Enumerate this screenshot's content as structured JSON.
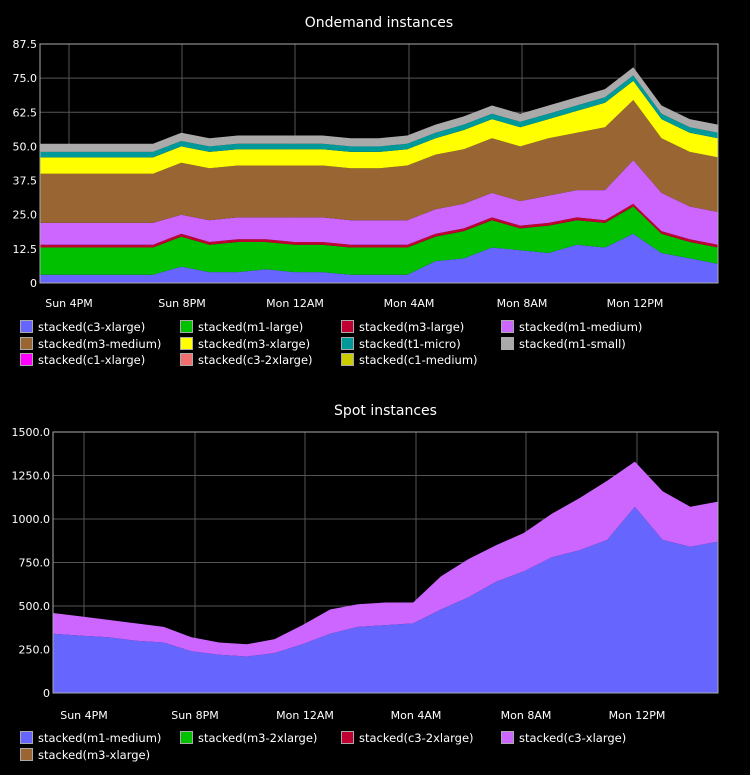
{
  "chart_data": [
    {
      "type": "area",
      "stacked": true,
      "title": "Ondemand instances",
      "ylim": [
        0,
        87.5
      ],
      "y_ticks": [
        "0",
        "12.5",
        "25.0",
        "37.5",
        "50.0",
        "62.5",
        "75.0",
        "87.5"
      ],
      "x_ticks": [
        "Sun  4PM",
        "Sun  8PM",
        "Mon 12AM",
        "Mon  4AM",
        "Mon  8AM",
        "Mon 12PM"
      ],
      "grid": true,
      "legend_position": "bottom",
      "x_hours": [
        0,
        1,
        2,
        3,
        4,
        5,
        6,
        7,
        8,
        9,
        10,
        11,
        12,
        13,
        14,
        15,
        16,
        17,
        18,
        19,
        20,
        21,
        22,
        23,
        24
      ],
      "series": [
        {
          "name": "stacked(c3-xlarge)",
          "color": "#6666ff",
          "values": [
            3,
            3,
            3,
            3,
            3,
            6,
            4,
            4,
            5,
            4,
            4,
            3,
            3,
            3,
            8,
            9,
            13,
            12,
            11,
            14,
            13,
            18,
            11,
            9,
            7
          ]
        },
        {
          "name": "stacked(m1-large)",
          "color": "#00c000",
          "values": [
            10,
            10,
            10,
            10,
            10,
            11,
            10,
            11,
            10,
            10,
            10,
            10,
            10,
            10,
            9,
            10,
            10,
            8,
            10,
            9,
            9,
            10,
            7,
            6,
            6
          ]
        },
        {
          "name": "stacked(m3-large)",
          "color": "#c00030",
          "values": [
            1,
            1,
            1,
            1,
            1,
            1,
            1,
            1,
            1,
            1,
            1,
            1,
            1,
            1,
            1,
            1,
            1,
            1,
            1,
            1,
            1,
            1,
            1,
            1,
            1
          ]
        },
        {
          "name": "stacked(m1-medium)",
          "color": "#cc66ff",
          "values": [
            8,
            8,
            8,
            8,
            8,
            7,
            8,
            8,
            8,
            9,
            9,
            9,
            9,
            9,
            9,
            9,
            9,
            9,
            10,
            10,
            11,
            16,
            14,
            12,
            12
          ]
        },
        {
          "name": "stacked(m3-medium)",
          "color": "#996633",
          "values": [
            18,
            18,
            18,
            18,
            18,
            19,
            19,
            19,
            19,
            19,
            19,
            19,
            19,
            20,
            20,
            20,
            20,
            20,
            21,
            21,
            23,
            22,
            20,
            20,
            20
          ]
        },
        {
          "name": "stacked(m3-xlarge)",
          "color": "#ffff00",
          "values": [
            6,
            6,
            6,
            6,
            6,
            6,
            6,
            6,
            6,
            6,
            6,
            6,
            6,
            6,
            6,
            7,
            7,
            7,
            7,
            8,
            9,
            7,
            7,
            7,
            7
          ]
        },
        {
          "name": "stacked(t1-micro)",
          "color": "#009999",
          "values": [
            2,
            2,
            2,
            2,
            2,
            2,
            2,
            2,
            2,
            2,
            2,
            2,
            2,
            2,
            2,
            2,
            2,
            2,
            2,
            2,
            2,
            2,
            2,
            2,
            2
          ]
        },
        {
          "name": "stacked(m1-small)",
          "color": "#aaaaaa",
          "values": [
            3,
            3,
            3,
            3,
            3,
            3,
            3,
            3,
            3,
            3,
            3,
            3,
            3,
            3,
            3,
            3,
            3,
            3,
            3,
            3,
            3,
            3,
            3,
            3,
            3
          ]
        },
        {
          "name": "stacked(c1-xlarge)",
          "color": "#ff00ff",
          "values": [
            0,
            0,
            0,
            0,
            0,
            0,
            0,
            0,
            0,
            0,
            0,
            0,
            0,
            0,
            0,
            0,
            0,
            0,
            0,
            0,
            0,
            0,
            0,
            0,
            0
          ]
        },
        {
          "name": "stacked(c3-2xlarge)",
          "color": "#f07070",
          "values": [
            0,
            0,
            0,
            0,
            0,
            0,
            0,
            0,
            0,
            0,
            0,
            0,
            0,
            0,
            0,
            0,
            0,
            0,
            0,
            0,
            0,
            0,
            0,
            0,
            0
          ]
        },
        {
          "name": "stacked(c1-medium)",
          "color": "#cccc00",
          "values": [
            0,
            0,
            0,
            0,
            0,
            0,
            0,
            0,
            0,
            0,
            0,
            0,
            0,
            0,
            0,
            0,
            0,
            0,
            0,
            0,
            0,
            0,
            0,
            0,
            0
          ]
        }
      ]
    },
    {
      "type": "area",
      "stacked": true,
      "title": "Spot instances",
      "ylim": [
        0,
        1500
      ],
      "y_ticks": [
        "0",
        "250.0",
        "500.0",
        "750.0",
        "1000.0",
        "1250.0",
        "1500.0"
      ],
      "x_ticks": [
        "Sun  4PM",
        "Sun  8PM",
        "Mon 12AM",
        "Mon  4AM",
        "Mon  8AM",
        "Mon 12PM"
      ],
      "grid": true,
      "legend_position": "bottom",
      "x_hours": [
        0,
        1,
        2,
        3,
        4,
        5,
        6,
        7,
        8,
        9,
        10,
        11,
        12,
        13,
        14,
        15,
        16,
        17,
        18,
        19,
        20,
        21,
        22,
        23,
        24
      ],
      "series": [
        {
          "name": "stacked(m1-medium)",
          "color": "#6666ff",
          "values": [
            340,
            330,
            320,
            300,
            290,
            240,
            220,
            210,
            230,
            280,
            340,
            380,
            390,
            400,
            480,
            550,
            640,
            700,
            780,
            820,
            880,
            1070,
            880,
            840,
            870
          ]
        },
        {
          "name": "stacked(m3-2xlarge)",
          "color": "#00c000",
          "values": [
            0,
            0,
            0,
            0,
            0,
            0,
            0,
            0,
            0,
            0,
            0,
            0,
            0,
            0,
            0,
            0,
            0,
            0,
            0,
            0,
            0,
            0,
            0,
            0,
            0
          ]
        },
        {
          "name": "stacked(c3-2xlarge)",
          "color": "#c00030",
          "values": [
            0,
            0,
            0,
            0,
            0,
            0,
            0,
            0,
            0,
            0,
            0,
            0,
            0,
            0,
            0,
            0,
            0,
            0,
            0,
            0,
            0,
            0,
            0,
            0,
            0
          ]
        },
        {
          "name": "stacked(c3-xlarge)",
          "color": "#cc66ff",
          "values": [
            120,
            110,
            100,
            100,
            90,
            80,
            70,
            70,
            80,
            110,
            140,
            130,
            130,
            120,
            190,
            220,
            210,
            220,
            250,
            300,
            340,
            260,
            280,
            230,
            230
          ]
        },
        {
          "name": "stacked(m3-xlarge)",
          "color": "#996633",
          "values": [
            0,
            0,
            0,
            0,
            0,
            0,
            0,
            0,
            0,
            0,
            0,
            0,
            0,
            0,
            0,
            0,
            0,
            0,
            0,
            0,
            0,
            0,
            0,
            0,
            0
          ]
        }
      ]
    }
  ]
}
